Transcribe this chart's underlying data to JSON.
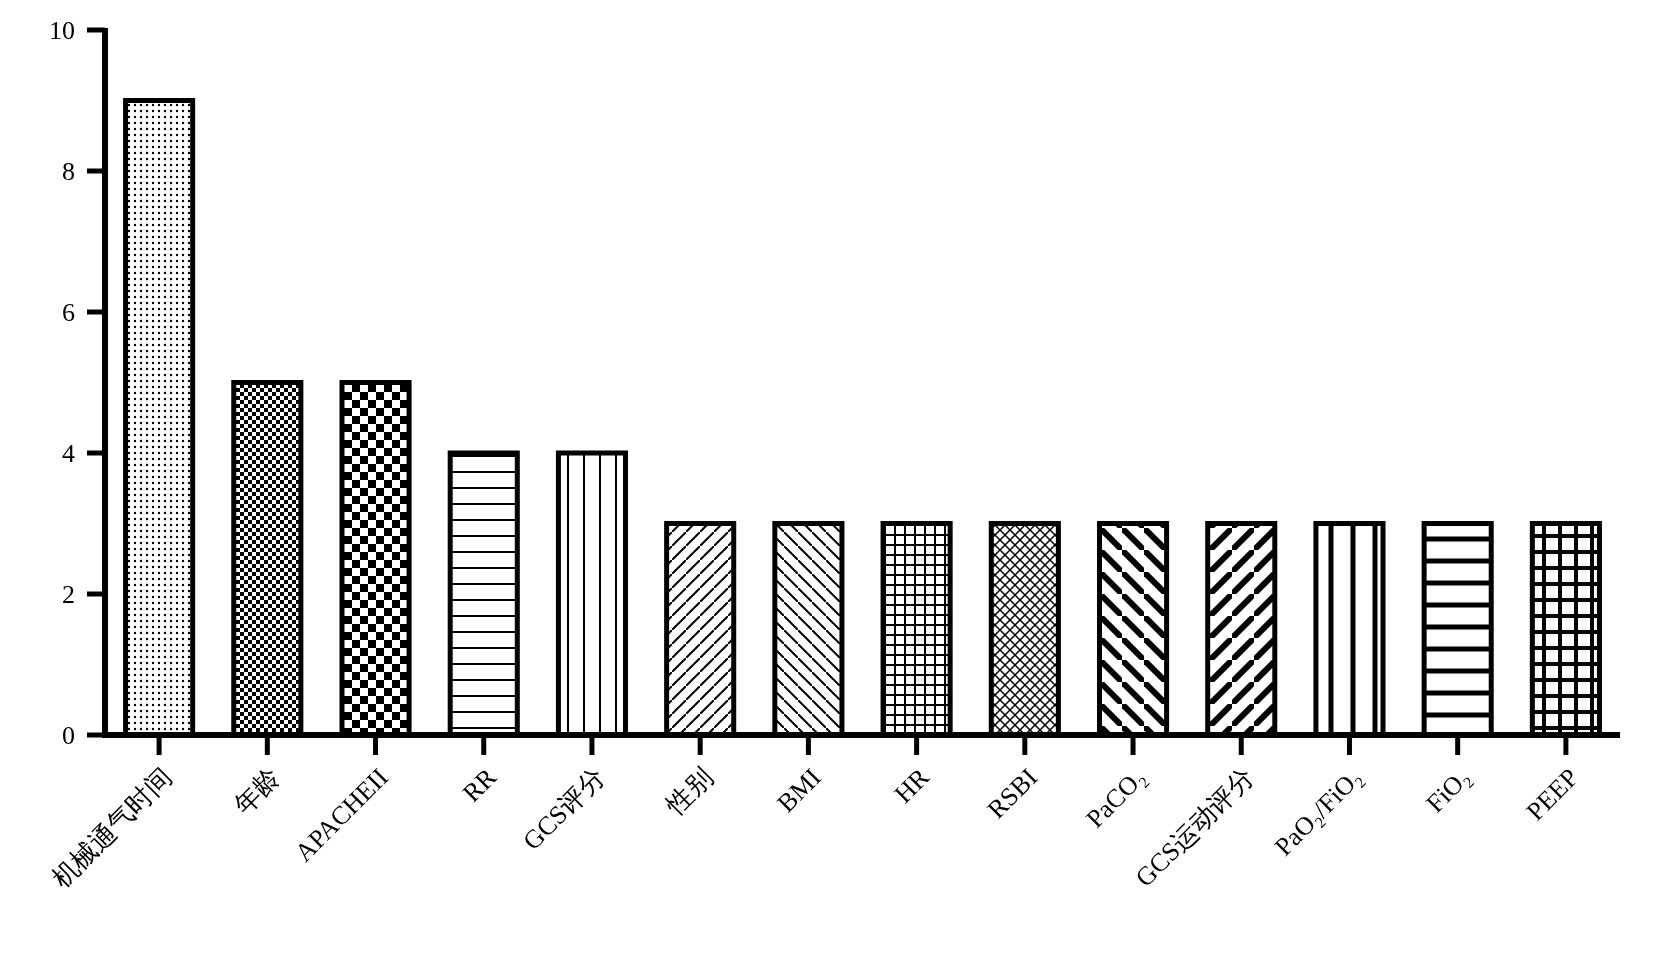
{
  "chart_data": {
    "type": "bar",
    "categories": [
      "机械通气时间",
      "年龄",
      "APACHEII",
      "RR",
      "GCS评分",
      "性别",
      "BMI",
      "HR",
      "RSBI",
      "PaCO₂",
      "GCS运动评分",
      "PaO₂/FiO₂",
      "FiO₂",
      "PEEP"
    ],
    "values": [
      9,
      5,
      5,
      4,
      4,
      3,
      3,
      3,
      3,
      3,
      3,
      3,
      3,
      3
    ],
    "ylim": [
      0,
      10
    ],
    "yticks": [
      0,
      2,
      4,
      6,
      8,
      10
    ],
    "grid": false
  }
}
